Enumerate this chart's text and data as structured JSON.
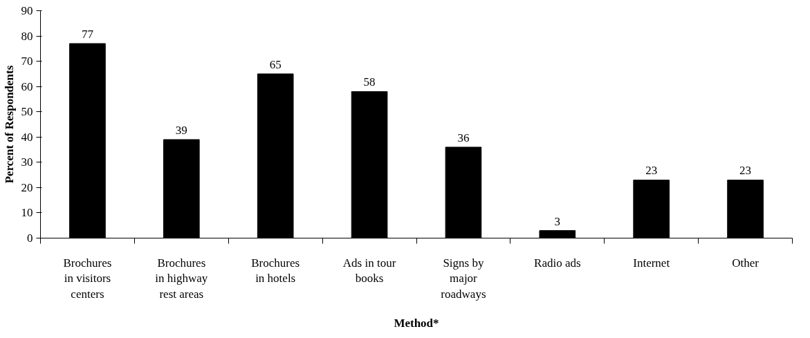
{
  "chart_data": {
    "type": "bar",
    "xlabel": "Method*",
    "ylabel": "Percent of Respondents",
    "categories": [
      "Brochures in visitors centers",
      "Brochures in highway rest areas",
      "Brochures in hotels",
      "Ads in tour books",
      "Signs by major roadways",
      "Radio ads",
      "Internet",
      "Other"
    ],
    "values": [
      77,
      39,
      65,
      58,
      36,
      3,
      23,
      23
    ],
    "color": "#000000",
    "ylim": [
      0,
      90
    ],
    "yticks": [
      0,
      10,
      20,
      30,
      40,
      50,
      60,
      70,
      80,
      90
    ],
    "grid": false,
    "data_labels": true
  }
}
